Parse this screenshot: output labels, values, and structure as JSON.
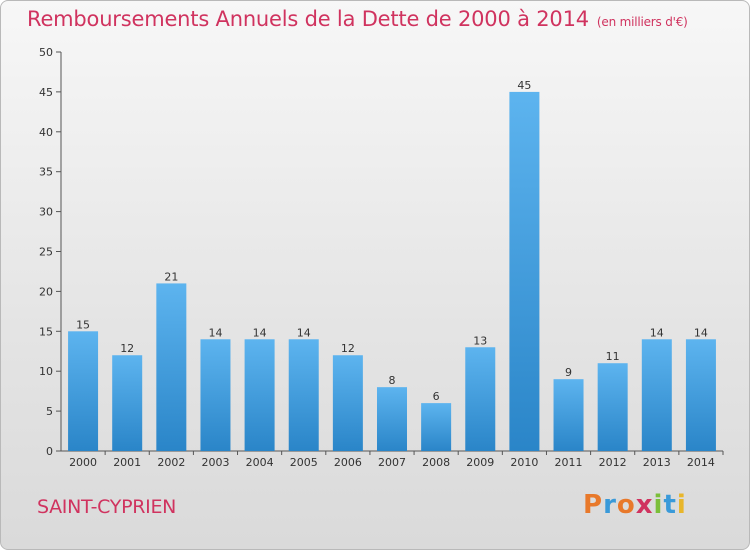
{
  "header": {
    "title": "Remboursements Annuels de la Dette de 2000 à 2014",
    "unit": "(en milliers d'€)"
  },
  "footer": {
    "commune": "SAINT-CYPRIEN",
    "logo_text": "Proxiti",
    "logo_colors": [
      "#e8792b",
      "#3a9ad9",
      "#e8792b",
      "#d0335f",
      "#7bbf3a",
      "#3a9ad9",
      "#e8b62b"
    ]
  },
  "colors": {
    "bar_light": "#5db4ef",
    "bar_dark": "#2a85c8",
    "axis": "#555555",
    "title": "#d0335f"
  },
  "chart_data": {
    "type": "bar",
    "categories": [
      "2000",
      "2001",
      "2002",
      "2003",
      "2004",
      "2005",
      "2006",
      "2007",
      "2008",
      "2009",
      "2010",
      "2011",
      "2012",
      "2013",
      "2014"
    ],
    "values": [
      15,
      12,
      21,
      14,
      14,
      14,
      12,
      8,
      6,
      13,
      45,
      9,
      11,
      14,
      14
    ],
    "yticks": [
      0,
      5,
      10,
      15,
      20,
      25,
      30,
      35,
      40,
      45,
      50
    ],
    "ylim": [
      0,
      50
    ],
    "grid": false,
    "title": "Remboursements Annuels de la Dette de 2000 à 2014",
    "xlabel": "",
    "ylabel": ""
  }
}
